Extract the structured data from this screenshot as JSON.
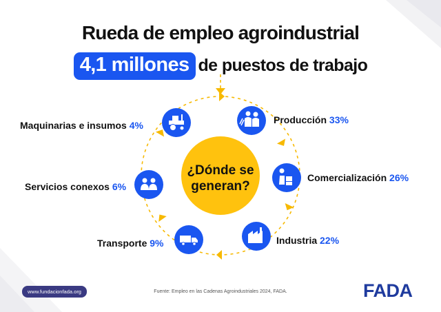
{
  "title": "Rueda de empleo agroindustrial",
  "subtitle": {
    "highlight": "4,1 millones",
    "rest": "de puestos de trabajo"
  },
  "center": {
    "line1": "¿Dónde se",
    "line2": "generan?"
  },
  "sectors": [
    {
      "name": "Producción",
      "percent": "33%",
      "icon": "farmers-icon"
    },
    {
      "name": "Comercialización",
      "percent": "26%",
      "icon": "worker-with-boxes-icon"
    },
    {
      "name": "Industria",
      "percent": "22%",
      "icon": "factory-icon"
    },
    {
      "name": "Transporte",
      "percent": "9%",
      "icon": "truck-icon"
    },
    {
      "name": "Servicios conexos",
      "percent": "6%",
      "icon": "people-meeting-icon"
    },
    {
      "name": "Maquinarias e insumos",
      "percent": "4%",
      "icon": "tractor-icon"
    }
  ],
  "footer": {
    "website": "www.fundacionfada.org",
    "source": "Fuente: Empleo en las Cadenas Agroindustriales 2024, FADA.",
    "logo": "FADA"
  },
  "colors": {
    "accent_blue": "#1a56f0",
    "center_yellow": "#ffc20e",
    "arrow_yellow": "#f7b900",
    "text_dark": "#111111",
    "badge_navy": "#3a3a82",
    "logo_blue": "#1f3b9e"
  }
}
